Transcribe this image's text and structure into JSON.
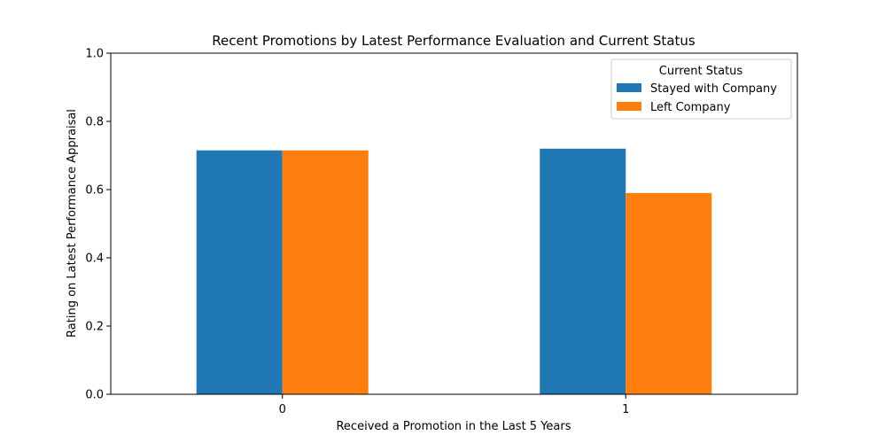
{
  "chart_data": {
    "type": "bar",
    "title": "Recent Promotions by Latest Performance Evaluation and Current Status",
    "xlabel": "Received a Promotion in the Last 5 Years",
    "ylabel": "Rating on Latest Performance Appraisal",
    "categories": [
      "0",
      "1"
    ],
    "series": [
      {
        "name": "Stayed with Company",
        "values": [
          0.715,
          0.72
        ],
        "color": "#1f77b4"
      },
      {
        "name": "Left Company",
        "values": [
          0.715,
          0.59
        ],
        "color": "#ff7f0e"
      }
    ],
    "ylim": [
      0,
      1.0
    ],
    "yticks": [
      "0.0",
      "0.2",
      "0.4",
      "0.6",
      "0.8",
      "1.0"
    ],
    "grid": false,
    "legend": {
      "title": "Current Status",
      "placement": "top-right"
    }
  }
}
